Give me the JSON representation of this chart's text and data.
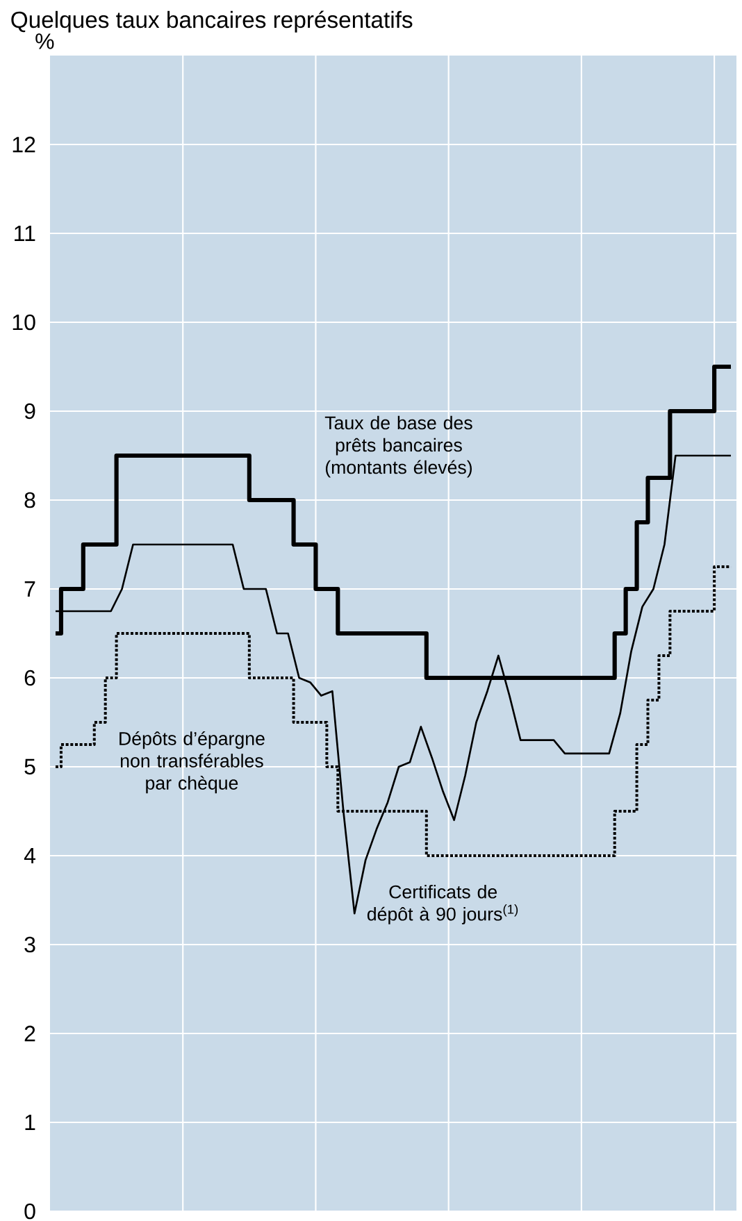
{
  "chart_data": {
    "type": "step",
    "title": "Quelques taux bancaires représentatifs",
    "ylabel": "%",
    "categories": [
      null,
      null,
      null,
      null,
      null,
      null,
      null,
      null,
      null,
      null,
      null,
      null,
      null,
      null,
      null,
      null,
      null,
      null,
      null,
      null,
      null,
      null,
      null,
      null,
      null,
      null,
      null,
      null,
      null,
      null,
      null,
      null,
      null,
      null,
      null,
      null,
      null,
      null,
      null,
      null,
      null,
      null,
      null,
      null,
      null,
      null,
      null,
      null,
      null,
      null,
      null,
      null,
      null,
      null,
      null,
      null,
      null,
      null,
      null,
      null,
      null,
      null
    ],
    "series": [
      {
        "name": "Taux de base des prêts bancaires (montants élevés)",
        "color": "#000000",
        "line_style": "solid",
        "values": [
          6.5,
          7.0,
          7.0,
          7.5,
          7.5,
          7.5,
          8.5,
          8.5,
          8.5,
          8.5,
          8.5,
          8.5,
          8.5,
          8.5,
          8.5,
          8.5,
          8.5,
          8.5,
          8.0,
          8.0,
          8.0,
          8.0,
          7.5,
          7.5,
          7.0,
          7.0,
          6.5,
          6.5,
          6.5,
          6.5,
          6.5,
          6.5,
          6.5,
          6.5,
          6.0,
          6.0,
          6.0,
          6.0,
          6.0,
          6.0,
          6.0,
          6.0,
          6.0,
          6.0,
          6.0,
          6.0,
          6.0,
          6.0,
          6.0,
          6.0,
          6.0,
          6.5,
          7.0,
          7.75,
          8.25,
          8.25,
          9.0,
          9.0,
          9.0,
          9.0,
          9.5,
          9.5
        ]
      },
      {
        "name": "Certificats de dépôt à 90 jours$^{(1)}$",
        "type": "line",
        "color": "#000000",
        "line_style": "solid",
        "values": [
          6.75,
          6.75,
          6.75,
          6.75,
          6.75,
          6.75,
          7.0,
          7.5,
          7.5,
          7.5,
          7.5,
          7.5,
          7.5,
          7.5,
          7.5,
          7.5,
          7.5,
          7.0,
          7.0,
          7.0,
          6.5,
          6.5,
          6.0,
          5.95,
          5.8,
          5.85,
          4.5,
          3.35,
          3.95,
          4.3,
          4.6,
          5.0,
          5.05,
          5.45,
          5.1,
          4.72,
          4.4,
          4.9,
          5.5,
          5.85,
          6.25,
          5.8,
          5.3,
          5.3,
          5.3,
          5.3,
          5.15,
          5.15,
          5.15,
          5.15,
          5.15,
          5.6,
          6.3,
          6.8,
          7.0,
          7.5,
          8.5,
          8.5,
          8.5,
          8.5,
          8.5,
          8.5
        ]
      },
      {
        "name": "Dépôts d’épargne non transférables par chèque",
        "color": "#000000",
        "line_style": "dotted",
        "values": [
          5.0,
          5.25,
          5.25,
          5.25,
          5.5,
          6.0,
          6.5,
          6.5,
          6.5,
          6.5,
          6.5,
          6.5,
          6.5,
          6.5,
          6.5,
          6.5,
          6.5,
          6.5,
          6.0,
          6.0,
          6.0,
          6.0,
          5.5,
          5.5,
          5.5,
          5.0,
          4.5,
          4.5,
          4.5,
          4.5,
          4.5,
          4.5,
          4.5,
          4.5,
          4.0,
          4.0,
          4.0,
          4.0,
          4.0,
          4.0,
          4.0,
          4.0,
          4.0,
          4.0,
          4.0,
          4.0,
          4.0,
          4.0,
          4.0,
          4.0,
          4.0,
          4.5,
          4.5,
          5.25,
          5.75,
          6.25,
          6.75,
          6.75,
          6.75,
          6.75,
          7.25,
          7.25
        ]
      }
    ],
    "ylim": [
      0,
      13
    ],
    "yticks": [
      0,
      1,
      2,
      3,
      4,
      5,
      6,
      7,
      8,
      9,
      10,
      11,
      12
    ],
    "grid": true,
    "tick_labels": "y"
  }
}
